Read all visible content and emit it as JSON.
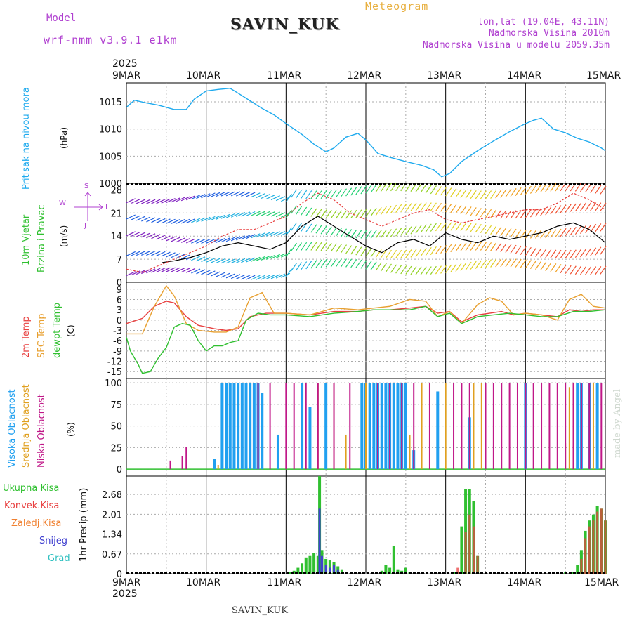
{
  "header": {
    "model_label": "Model",
    "model_name": "wrf-nmm_v3.9.1 e1km",
    "station": "SAVIN_KUK",
    "product": "Meteogram",
    "lonlat": "lon,lat (19.04E, 43.11N)",
    "altitude": "Nadmorska Visina 2010m",
    "model_altitude": "Nadmorska Visina u modelu 2059.35m",
    "year_top": "2025",
    "year_bottom": "2025",
    "footer_station": "SAVIN_KUK",
    "credit": "made by Angel"
  },
  "colors": {
    "pressure": "#1eaaee",
    "temp2m": "#e84040",
    "sfc": "#e8a030",
    "dewpt": "#30c030",
    "high_cloud": "#20a0f0",
    "mid_cloud": "#e0a020",
    "low_cloud": "#c01888",
    "total_precip": "#30c030",
    "conv_precip": "#e84040",
    "frz_precip": "#f08030",
    "snow": "#4040d0",
    "hail": "#30c0c0"
  },
  "dates": [
    "9MAR",
    "10MAR",
    "11MAR",
    "12MAR",
    "13MAR",
    "14MAR",
    "15MAR"
  ],
  "panels": {
    "pressure": {
      "label_main": "Pritisak na nivou mora",
      "unit": "(hPa)",
      "ticks": [
        "1015",
        "1010",
        "1005",
        "1000"
      ]
    },
    "wind": {
      "label_main": "10m Vjetar",
      "label_sub": "Brzina i Pravac",
      "unit": "(m/s)",
      "ticks": [
        "28",
        "21",
        "14",
        "7",
        "0"
      ],
      "compass": [
        "W",
        "S",
        "J",
        "I"
      ]
    },
    "temp": {
      "label_2m": "2m Temp",
      "label_sfc": "SFC Temp",
      "label_dew": "dewpt Temp",
      "unit": "(C)",
      "ticks": [
        "9",
        "6",
        "3",
        "0",
        "-3",
        "-6",
        "-9",
        "-12",
        "-15"
      ]
    },
    "cloud": {
      "label_high": "Visoka Oblacnost",
      "label_mid": "Srednja Oblacnost",
      "label_low": "Niska Oblacnost",
      "unit": "(%)",
      "ticks": [
        "100",
        "75",
        "50",
        "25",
        "0"
      ]
    },
    "precip": {
      "label_main": "1hr Precip (mm)",
      "legend": [
        "Ukupna Kisa",
        "Konvek.Kisa",
        "Zaledj.Kisa",
        "Snijeg",
        "Grad"
      ],
      "ticks": [
        "2.68",
        "2.01",
        "1.34",
        "0.67",
        "0"
      ]
    }
  },
  "chart_data": [
    {
      "type": "line",
      "title": "",
      "ylabel": "(hPa)",
      "x_unit": "days since 9MAR 00UTC",
      "ylim": [
        1000,
        1018
      ],
      "series": [
        {
          "name": "Pritisak na nivou mora",
          "x": [
            0,
            0.1,
            0.25,
            0.4,
            0.6,
            0.75,
            0.85,
            1.0,
            1.15,
            1.3,
            1.4,
            1.55,
            1.7,
            1.85,
            2.0,
            2.2,
            2.35,
            2.5,
            2.6,
            2.75,
            2.9,
            3.0,
            3.15,
            3.3,
            3.5,
            3.7,
            3.85,
            3.95,
            4.05,
            4.2,
            4.4,
            4.6,
            4.8,
            5.0,
            5.1,
            5.2,
            5.35,
            5.5,
            5.65,
            5.8,
            5.95,
            6.0
          ],
          "y": [
            1014,
            1015.3,
            1014.8,
            1014.4,
            1013.6,
            1013.6,
            1015.5,
            1017.0,
            1017.3,
            1017.5,
            1016.6,
            1015.2,
            1013.8,
            1012.6,
            1011.0,
            1009.0,
            1007.2,
            1005.8,
            1006.5,
            1008.5,
            1009.2,
            1008.0,
            1005.5,
            1004.8,
            1004.0,
            1003.3,
            1002.5,
            1001.2,
            1001.8,
            1004.0,
            1006.0,
            1007.8,
            1009.5,
            1011.0,
            1011.6,
            1012.0,
            1010.0,
            1009.3,
            1008.3,
            1007.6,
            1006.5,
            1006.0
          ]
        }
      ]
    },
    {
      "type": "line",
      "title": "",
      "ylabel": "(m/s)",
      "x_unit": "days since 9MAR 00UTC",
      "ylim": [
        0,
        30
      ],
      "series": [
        {
          "name": "wind_speed_mean",
          "x": [
            0.45,
            0.6,
            0.8,
            1.0,
            1.2,
            1.4,
            1.6,
            1.8,
            2.0,
            2.2,
            2.4,
            2.6,
            2.8,
            3.0,
            3.2,
            3.4,
            3.6,
            3.8,
            4.0,
            4.2,
            4.4,
            4.6,
            4.8,
            5.0,
            5.2,
            5.4,
            5.6,
            5.8,
            6.0
          ],
          "y": [
            6,
            6.5,
            7.5,
            9,
            11,
            12,
            11,
            10,
            12,
            17,
            20,
            17,
            14,
            11,
            9,
            12,
            13,
            11,
            15,
            13,
            12,
            14,
            13,
            14,
            15,
            17,
            18,
            16,
            12
          ]
        },
        {
          "name": "wind_gust",
          "x": [
            0,
            0.2,
            0.4,
            0.6,
            0.8,
            1.0,
            1.2,
            1.4,
            1.6,
            1.8,
            2.0,
            2.2,
            2.4,
            2.6,
            2.8,
            3.0,
            3.2,
            3.4,
            3.6,
            3.8,
            4.0,
            4.2,
            4.4,
            4.6,
            4.8,
            5.0,
            5.2,
            5.4,
            5.6,
            5.8,
            6.0
          ],
          "y": [
            4,
            3,
            5,
            7,
            9,
            11,
            14,
            16,
            16,
            18,
            20,
            24,
            27,
            25,
            21,
            19,
            17,
            19,
            21,
            22,
            19,
            18,
            19,
            20,
            21,
            22,
            22,
            24,
            27,
            25,
            22
          ]
        }
      ]
    },
    {
      "type": "line",
      "title": "",
      "ylabel": "(C)",
      "x_unit": "days since 9MAR 00UTC",
      "ylim": [
        -17,
        11
      ],
      "series": [
        {
          "name": "2m Temp",
          "x": [
            0,
            0.2,
            0.35,
            0.5,
            0.6,
            0.75,
            0.9,
            1.1,
            1.25,
            1.4,
            1.55,
            1.75,
            2.0,
            2.3,
            2.6,
            2.9,
            3.1,
            3.3,
            3.55,
            3.75,
            3.9,
            4.05,
            4.2,
            4.4,
            4.55,
            4.7,
            4.85,
            5.0,
            5.2,
            5.4,
            5.55,
            5.7,
            5.85,
            6.0
          ],
          "y": [
            -1,
            0.5,
            4,
            5.5,
            5,
            1,
            -1.5,
            -2.5,
            -3,
            -2.5,
            1,
            2,
            2,
            1.5,
            2.5,
            2.5,
            3,
            3,
            3.5,
            4,
            2,
            2.5,
            -0.5,
            1.5,
            2,
            2.5,
            1.5,
            2,
            1.5,
            1,
            3,
            2.5,
            3,
            3
          ]
        },
        {
          "name": "SFC Temp",
          "x": [
            0,
            0.2,
            0.35,
            0.5,
            0.6,
            0.75,
            0.9,
            1.1,
            1.25,
            1.4,
            1.55,
            1.7,
            1.85,
            2.0,
            2.3,
            2.6,
            2.9,
            3.1,
            3.3,
            3.55,
            3.75,
            3.9,
            4.05,
            4.2,
            4.4,
            4.55,
            4.7,
            4.85,
            5.0,
            5.2,
            5.4,
            5.55,
            5.7,
            5.85,
            6.0
          ],
          "y": [
            -4,
            -4,
            4,
            10,
            7,
            -1,
            -3,
            -3.5,
            -3.5,
            -2,
            6.5,
            8,
            2,
            2,
            1.5,
            3.5,
            3,
            3.5,
            4,
            6,
            5.5,
            1,
            2.5,
            -1,
            4.5,
            6.5,
            5.5,
            1.5,
            2,
            1.5,
            0,
            6,
            7.5,
            4,
            3.5
          ]
        },
        {
          "name": "dewpt Temp",
          "x": [
            0,
            0.05,
            0.15,
            0.2,
            0.3,
            0.4,
            0.5,
            0.6,
            0.7,
            0.8,
            0.9,
            1.0,
            1.1,
            1.2,
            1.3,
            1.4,
            1.5,
            1.65,
            1.8,
            2.0,
            2.3,
            2.6,
            2.9,
            3.1,
            3.3,
            3.55,
            3.75,
            3.9,
            4.05,
            4.2,
            4.4,
            4.6,
            4.8,
            5.0,
            5.2,
            5.4,
            5.6,
            5.8,
            6.0
          ],
          "y": [
            -5,
            -9,
            -13,
            -15.5,
            -15,
            -11,
            -8,
            -2,
            -1,
            -1.5,
            -6,
            -9,
            -7.5,
            -7.5,
            -6.5,
            -6,
            0,
            2,
            1.5,
            1.5,
            1,
            2,
            2.5,
            3,
            3,
            3,
            4,
            1,
            2,
            -1,
            1,
            1.5,
            2,
            1.5,
            1,
            1,
            2.5,
            2.5,
            3
          ]
        }
      ]
    },
    {
      "type": "bar",
      "title": "",
      "ylabel": "(%)",
      "x_unit": "days since 9MAR 00UTC",
      "ylim": [
        0,
        100
      ],
      "series": [
        {
          "name": "Visoka Oblacnost",
          "x": [
            1.1,
            1.2,
            1.25,
            1.3,
            1.35,
            1.4,
            1.45,
            1.5,
            1.55,
            1.6,
            1.65,
            1.7,
            1.9,
            2.2,
            2.3,
            2.5,
            2.95,
            3.0,
            3.05,
            3.1,
            3.15,
            3.2,
            3.25,
            3.3,
            3.35,
            3.4,
            3.45,
            3.5,
            3.6,
            3.9,
            4.3,
            5.0,
            5.65,
            5.7,
            5.8,
            5.9
          ],
          "y": [
            12,
            100,
            100,
            100,
            100,
            100,
            100,
            100,
            100,
            100,
            100,
            88,
            40,
            100,
            72,
            100,
            100,
            100,
            100,
            100,
            100,
            100,
            100,
            100,
            100,
            100,
            100,
            100,
            22,
            90,
            60,
            100,
            100,
            100,
            100,
            100
          ]
        },
        {
          "name": "Srednja Oblacnost",
          "x": [
            1.15,
            2.4,
            2.6,
            2.75,
            3.0,
            3.55,
            3.7,
            4.0,
            4.35,
            4.45,
            5.5,
            5.55,
            5.6,
            5.85
          ],
          "y": [
            5,
            100,
            100,
            40,
            100,
            40,
            100,
            100,
            100,
            100,
            30,
            95,
            100,
            100
          ]
        },
        {
          "name": "Niska Oblacnost",
          "x": [
            0.55,
            0.7,
            0.75,
            1.65,
            1.8,
            2.0,
            2.1,
            2.25,
            2.4,
            2.6,
            2.8,
            3.15,
            3.3,
            3.45,
            3.6,
            3.8,
            4.1,
            4.2,
            4.3,
            4.5,
            4.6,
            4.7,
            4.8,
            4.9,
            5.0,
            5.1,
            5.2,
            5.3,
            5.4,
            5.5,
            5.6,
            5.7,
            5.8,
            5.95
          ],
          "y": [
            10,
            15,
            26,
            100,
            100,
            100,
            100,
            100,
            100,
            100,
            100,
            100,
            100,
            100,
            100,
            100,
            100,
            100,
            100,
            100,
            100,
            100,
            100,
            100,
            100,
            100,
            100,
            100,
            100,
            100,
            100,
            100,
            100,
            100
          ]
        }
      ]
    },
    {
      "type": "bar",
      "title": "",
      "ylabel": "1hr Precip (mm)",
      "x_unit": "days since 9MAR 00UTC",
      "ylim": [
        0,
        3.3
      ],
      "series": [
        {
          "name": "Ukupna Kisa",
          "x": [
            2.05,
            2.1,
            2.15,
            2.2,
            2.25,
            2.3,
            2.35,
            2.4,
            2.42,
            2.45,
            2.5,
            2.55,
            2.6,
            2.65,
            2.7,
            3.2,
            3.25,
            3.3,
            3.35,
            3.4,
            3.45,
            3.5,
            3.55,
            4.1,
            4.15,
            4.2,
            4.25,
            4.3,
            4.35,
            4.4,
            5.5,
            5.6,
            5.65,
            5.7,
            5.75,
            5.8,
            5.85,
            5.9,
            5.95,
            6.0
          ],
          "y": [
            0.05,
            0.1,
            0.2,
            0.35,
            0.55,
            0.6,
            0.7,
            0.6,
            3.3,
            0.8,
            0.5,
            0.45,
            0.4,
            0.25,
            0.15,
            0.1,
            0.3,
            0.2,
            0.95,
            0.15,
            0.1,
            0.2,
            0.05,
            0.05,
            0.05,
            1.6,
            2.85,
            2.85,
            2.45,
            0.6,
            0.05,
            0.05,
            0.3,
            0.8,
            1.45,
            1.8,
            2.0,
            2.3,
            2.2,
            1.8
          ]
        },
        {
          "name": "Snijeg",
          "x": [
            2.42,
            2.45,
            2.5,
            2.55,
            2.6,
            2.65
          ],
          "y": [
            2.2,
            0.6,
            0.3,
            0.2,
            0.3,
            0.15
          ]
        },
        {
          "name": "Konvek.Kisa",
          "x": [
            4.15,
            4.25,
            4.3,
            4.35,
            4.4,
            5.7,
            5.75,
            5.8,
            5.85,
            5.9,
            5.95,
            6.0
          ],
          "y": [
            0.2,
            1.4,
            2.0,
            1.6,
            0.6,
            0.5,
            1.2,
            1.6,
            1.8,
            2.1,
            2.2,
            1.8
          ]
        }
      ]
    }
  ]
}
